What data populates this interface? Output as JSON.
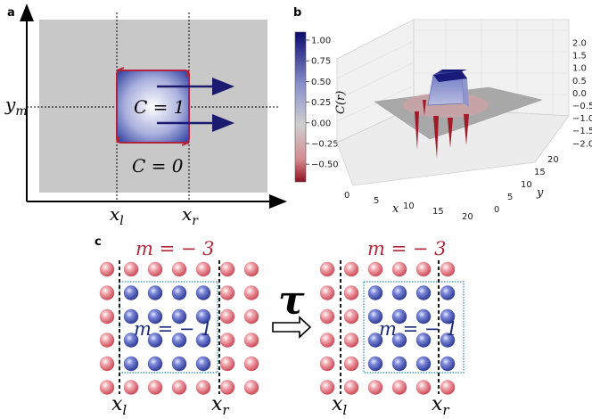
{
  "panel_a": {
    "label": "a",
    "y_label_base": "y",
    "y_label_sub": "m",
    "x_left_base": "x",
    "x_left_sub": "l",
    "x_right_base": "x",
    "x_right_sub": "r",
    "inner_text": "C = 1",
    "outer_text": "C = 0",
    "colors": {
      "background": "#c8c8c8",
      "box_edge": "#b0233a",
      "arrow": "#1a1a6e",
      "center": "#ffffff",
      "edge": "#2a3a9e"
    }
  },
  "panel_b": {
    "label": "b",
    "colorbar_ticks": [
      "1.00",
      "0.75",
      "0.50",
      "0.25",
      "0.00",
      "−0.25",
      "−0.50"
    ],
    "z_label": "C(r)",
    "z_ticks": [
      "2.0",
      "1.5",
      "1.0",
      "0.5",
      "0.0",
      "−0.5",
      "−1.0",
      "−1.5",
      "−2.0"
    ],
    "x_label": "x",
    "x_ticks": [
      "0",
      "5",
      "10",
      "15",
      "20"
    ],
    "y_label": "y",
    "y_ticks": [
      "0",
      "5",
      "10",
      "15",
      "20"
    ]
  },
  "panel_c": {
    "label": "c",
    "left": {
      "top_text": "m = − 3",
      "inner_text": "m = − 1",
      "x_left_base": "x",
      "x_left_sub": "l",
      "x_right_base": "x",
      "x_right_sub": "r"
    },
    "operator": "τ",
    "right": {
      "top_text": "m = − 3",
      "inner_text": "m = − 1",
      "x_left_base": "x",
      "x_left_sub": "l",
      "x_right_base": "x",
      "x_right_sub": "r"
    },
    "colors": {
      "red_atom": "#d8606c",
      "blue_atom": "#3a4aa8",
      "red_text": "#b22a3a",
      "blue_text": "#1a2a78",
      "box": "#2a8aa8"
    }
  }
}
